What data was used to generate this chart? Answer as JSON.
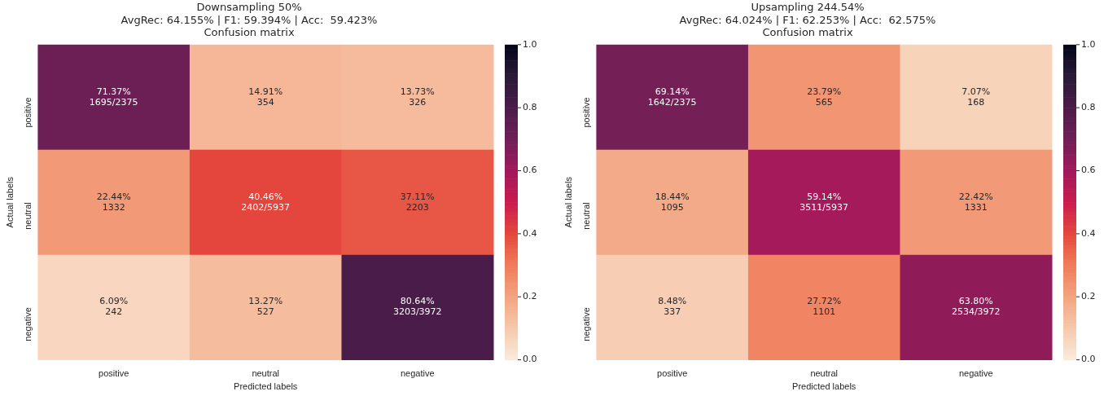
{
  "chart_data": [
    {
      "type": "heatmap",
      "title": "Downsampling 50%",
      "subtitle": "AvgRec: 64.155% | F1: 59.394% | Acc:  59.423%\nConfusion matrix",
      "xlabel": "Predicted labels",
      "ylabel": "Actual labels",
      "categories": [
        "positive",
        "neutral",
        "negative"
      ],
      "y_categories": [
        "positive",
        "neutral",
        "negative"
      ],
      "cells": [
        [
          0.7137,
          0.1491,
          0.1373
        ],
        [
          0.2244,
          0.4046,
          0.3711
        ],
        [
          0.0609,
          0.1327,
          0.8064
        ]
      ],
      "cell_labels": [
        [
          "71.37%\n1695/2375",
          "14.91%\n354",
          "13.73%\n326"
        ],
        [
          "22.44%\n1332",
          "40.46%\n2402/5937",
          "37.11%\n2203"
        ],
        [
          "6.09%\n242",
          "13.27%\n527",
          "80.64%\n3203/3972"
        ]
      ],
      "clim": [
        0,
        1
      ],
      "cticks": [
        {
          "value": 0,
          "label": "0.0"
        },
        {
          "value": 0.2,
          "label": "0.2"
        },
        {
          "value": 0.4,
          "label": "0.4"
        },
        {
          "value": 0.6,
          "label": "0.6"
        },
        {
          "value": 0.8,
          "label": "0.8"
        },
        {
          "value": 1,
          "label": "1.0"
        }
      ]
    },
    {
      "type": "heatmap",
      "title": "Upsampling 244.54%",
      "subtitle": "AvgRec: 64.024% | F1: 62.253% | Acc:  62.575%\nConfusion matrix",
      "xlabel": "Predicted labels",
      "ylabel": "Actual labels",
      "categories": [
        "positive",
        "neutral",
        "negative"
      ],
      "y_categories": [
        "positive",
        "neutral",
        "negative"
      ],
      "cells": [
        [
          0.6914,
          0.2379,
          0.0707
        ],
        [
          0.1844,
          0.5914,
          0.2242
        ],
        [
          0.0848,
          0.2772,
          0.638
        ]
      ],
      "cell_labels": [
        [
          "69.14%\n1642/2375",
          "23.79%\n565",
          "7.07%\n168"
        ],
        [
          "18.44%\n1095",
          "59.14%\n3511/5937",
          "22.42%\n1331"
        ],
        [
          "8.48%\n337",
          "27.72%\n1101",
          "63.80%\n2534/3972"
        ]
      ],
      "clim": [
        0,
        1
      ],
      "cticks": [
        {
          "value": 0,
          "label": "0.0"
        },
        {
          "value": 0.2,
          "label": "0.2"
        },
        {
          "value": 0.4,
          "label": "0.4"
        },
        {
          "value": 0.6,
          "label": "0.6"
        },
        {
          "value": 0.8,
          "label": "0.8"
        },
        {
          "value": 1,
          "label": "1.0"
        }
      ]
    }
  ]
}
